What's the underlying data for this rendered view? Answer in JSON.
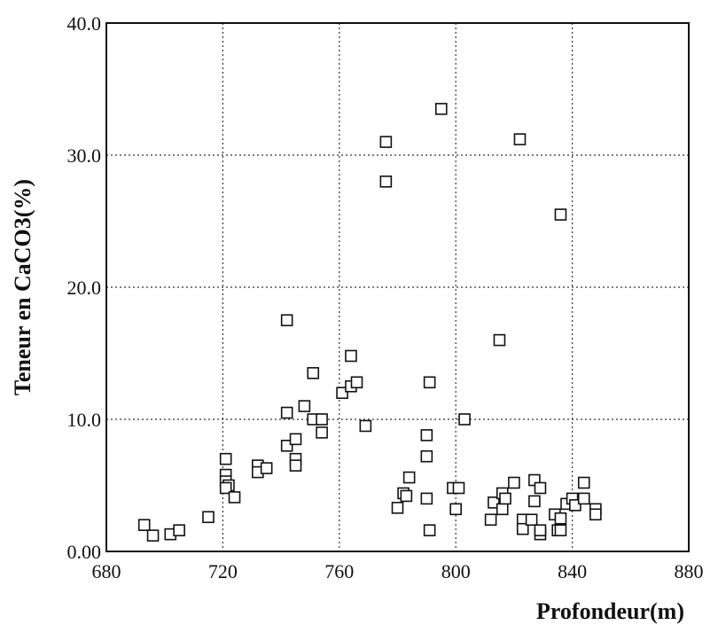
{
  "chart_data": {
    "type": "scatter",
    "xlabel": "Profondeur(m)",
    "ylabel": "Teneur en CaCO3(%)",
    "xlim": [
      680,
      880
    ],
    "ylim": [
      0,
      40
    ],
    "x_ticks": [
      "680",
      "720",
      "760",
      "800",
      "840",
      "880"
    ],
    "y_ticks": [
      "0.00",
      "10.0",
      "20.0",
      "30.0",
      "40.0"
    ],
    "grid": true,
    "marker": "open-square",
    "points": [
      [
        693,
        2.0
      ],
      [
        696,
        1.2
      ],
      [
        702,
        1.3
      ],
      [
        705,
        1.6
      ],
      [
        715,
        2.6
      ],
      [
        721,
        7.0
      ],
      [
        721,
        5.8
      ],
      [
        721,
        5.3
      ],
      [
        722,
        5.0
      ],
      [
        721,
        4.8
      ],
      [
        724,
        4.1
      ],
      [
        732,
        6.5
      ],
      [
        732,
        6.0
      ],
      [
        735,
        6.3
      ],
      [
        742,
        17.5
      ],
      [
        742,
        10.5
      ],
      [
        742,
        8.0
      ],
      [
        745,
        8.5
      ],
      [
        745,
        7.0
      ],
      [
        745,
        6.5
      ],
      [
        748,
        11.0
      ],
      [
        751,
        13.5
      ],
      [
        751,
        10.0
      ],
      [
        754,
        10.0
      ],
      [
        754,
        9.0
      ],
      [
        761,
        12.0
      ],
      [
        764,
        12.5
      ],
      [
        764,
        14.8
      ],
      [
        766,
        12.8
      ],
      [
        769,
        9.5
      ],
      [
        776,
        31.0
      ],
      [
        776,
        28.0
      ],
      [
        795,
        33.5
      ],
      [
        822,
        31.2
      ],
      [
        836,
        25.5
      ],
      [
        780,
        3.3
      ],
      [
        782,
        4.4
      ],
      [
        783,
        4.2
      ],
      [
        784,
        5.6
      ],
      [
        790,
        8.8
      ],
      [
        790,
        7.2
      ],
      [
        790,
        4.0
      ],
      [
        791,
        1.6
      ],
      [
        791,
        12.8
      ],
      [
        799,
        4.8
      ],
      [
        800,
        3.2
      ],
      [
        801,
        4.8
      ],
      [
        803,
        10.0
      ],
      [
        812,
        2.4
      ],
      [
        813,
        3.7
      ],
      [
        815,
        16.0
      ],
      [
        816,
        4.4
      ],
      [
        816,
        3.2
      ],
      [
        817,
        4.0
      ],
      [
        820,
        5.2
      ],
      [
        823,
        2.4
      ],
      [
        823,
        1.7
      ],
      [
        826,
        2.4
      ],
      [
        827,
        5.4
      ],
      [
        827,
        3.8
      ],
      [
        829,
        4.8
      ],
      [
        829,
        1.3
      ],
      [
        829,
        1.6
      ],
      [
        834,
        2.8
      ],
      [
        835,
        1.6
      ],
      [
        836,
        2.5
      ],
      [
        836,
        1.6
      ],
      [
        838,
        3.6
      ],
      [
        840,
        4.0
      ],
      [
        841,
        3.5
      ],
      [
        844,
        5.2
      ],
      [
        844,
        4.0
      ],
      [
        848,
        3.2
      ],
      [
        848,
        2.8
      ]
    ]
  }
}
